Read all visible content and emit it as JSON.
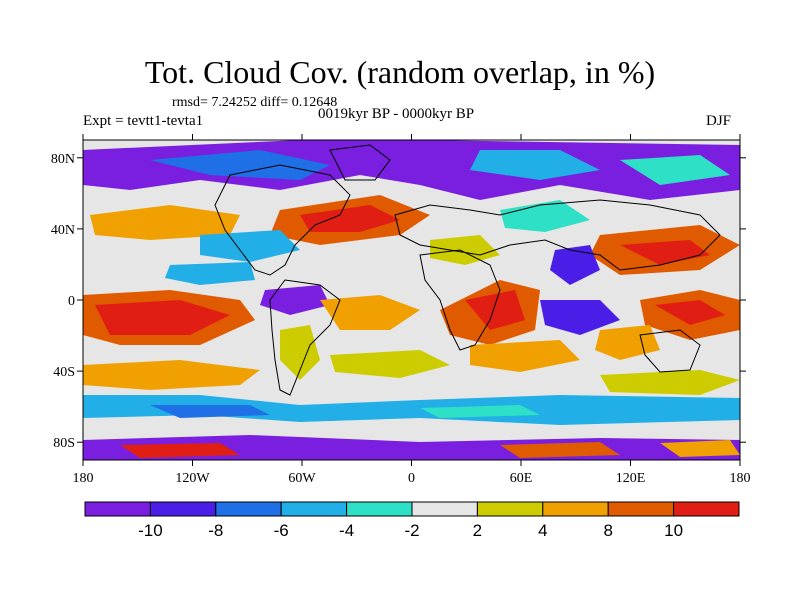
{
  "title": "Tot. Cloud Cov. (random overlap, in %)",
  "stats": "rmsd= 7.24252  diff= 0.12648",
  "experiment": "Expt = tevtt1-tevta1",
  "period": "0019kyr BP - 0000kyr BP",
  "season": "DJF",
  "map": {
    "projection": "cylindrical equidistant",
    "lon_range": [
      -180,
      180
    ],
    "lat_range": [
      -90,
      90
    ],
    "lon_ticks": [
      {
        "value": -180,
        "label": "180"
      },
      {
        "value": -120,
        "label": "120W"
      },
      {
        "value": -60,
        "label": "60W"
      },
      {
        "value": 0,
        "label": "0"
      },
      {
        "value": 60,
        "label": "60E"
      },
      {
        "value": 120,
        "label": "120E"
      },
      {
        "value": 180,
        "label": "180"
      }
    ],
    "lat_ticks": [
      {
        "value": 80,
        "label": "80N"
      },
      {
        "value": 40,
        "label": "40N"
      },
      {
        "value": 0,
        "label": "0"
      },
      {
        "value": -40,
        "label": "40S"
      },
      {
        "value": -80,
        "label": "80S"
      }
    ]
  },
  "colorbar": {
    "levels": [
      -10,
      -8,
      -6,
      -4,
      -2,
      2,
      4,
      8,
      10
    ],
    "level_labels": [
      "-10",
      "-8",
      "-6",
      "-4",
      "-2",
      "2",
      "4",
      "8",
      "10"
    ],
    "colors": [
      "#7a1fe0",
      "#4a1ee6",
      "#1f6fe6",
      "#22aee6",
      "#2ee0c6",
      "#e6e6e6",
      "#cccc00",
      "#f0a000",
      "#e05a00",
      "#e01e14"
    ]
  }
}
